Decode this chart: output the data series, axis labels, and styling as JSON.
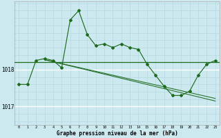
{
  "title": "Graphe pression niveau de la mer (hPa)",
  "bg_color": "#cde9f0",
  "grid_white_color": "#ffffff",
  "grid_light_color": "#b5d8e3",
  "line_color": "#1e6b1e",
  "xlim": [
    -0.5,
    23.5
  ],
  "ylim": [
    1016.5,
    1019.85
  ],
  "ytick_values": [
    1017,
    1018
  ],
  "xtick_values": [
    0,
    1,
    2,
    3,
    4,
    5,
    6,
    7,
    8,
    9,
    10,
    11,
    12,
    13,
    14,
    15,
    16,
    17,
    18,
    19,
    20,
    21,
    22,
    23
  ],
  "hline_y": 1018.2,
  "curve_x": [
    0,
    1,
    2,
    3,
    4,
    5,
    6,
    7,
    8,
    9,
    10,
    11,
    12,
    13,
    14,
    15,
    16,
    17,
    18,
    19,
    20,
    21,
    22,
    23
  ],
  "curve_y": [
    1017.6,
    1017.6,
    1018.25,
    1018.3,
    1018.25,
    1018.05,
    1019.35,
    1019.6,
    1018.95,
    1018.65,
    1018.7,
    1018.6,
    1018.7,
    1018.6,
    1018.55,
    1018.15,
    1017.85,
    1017.55,
    1017.3,
    1017.3,
    1017.42,
    1017.85,
    1018.15,
    1018.25
  ],
  "trend1_x": [
    3,
    23
  ],
  "trend1_y": [
    1018.27,
    1017.15
  ],
  "trend2_x": [
    3,
    23
  ],
  "trend2_y": [
    1018.27,
    1017.22
  ]
}
